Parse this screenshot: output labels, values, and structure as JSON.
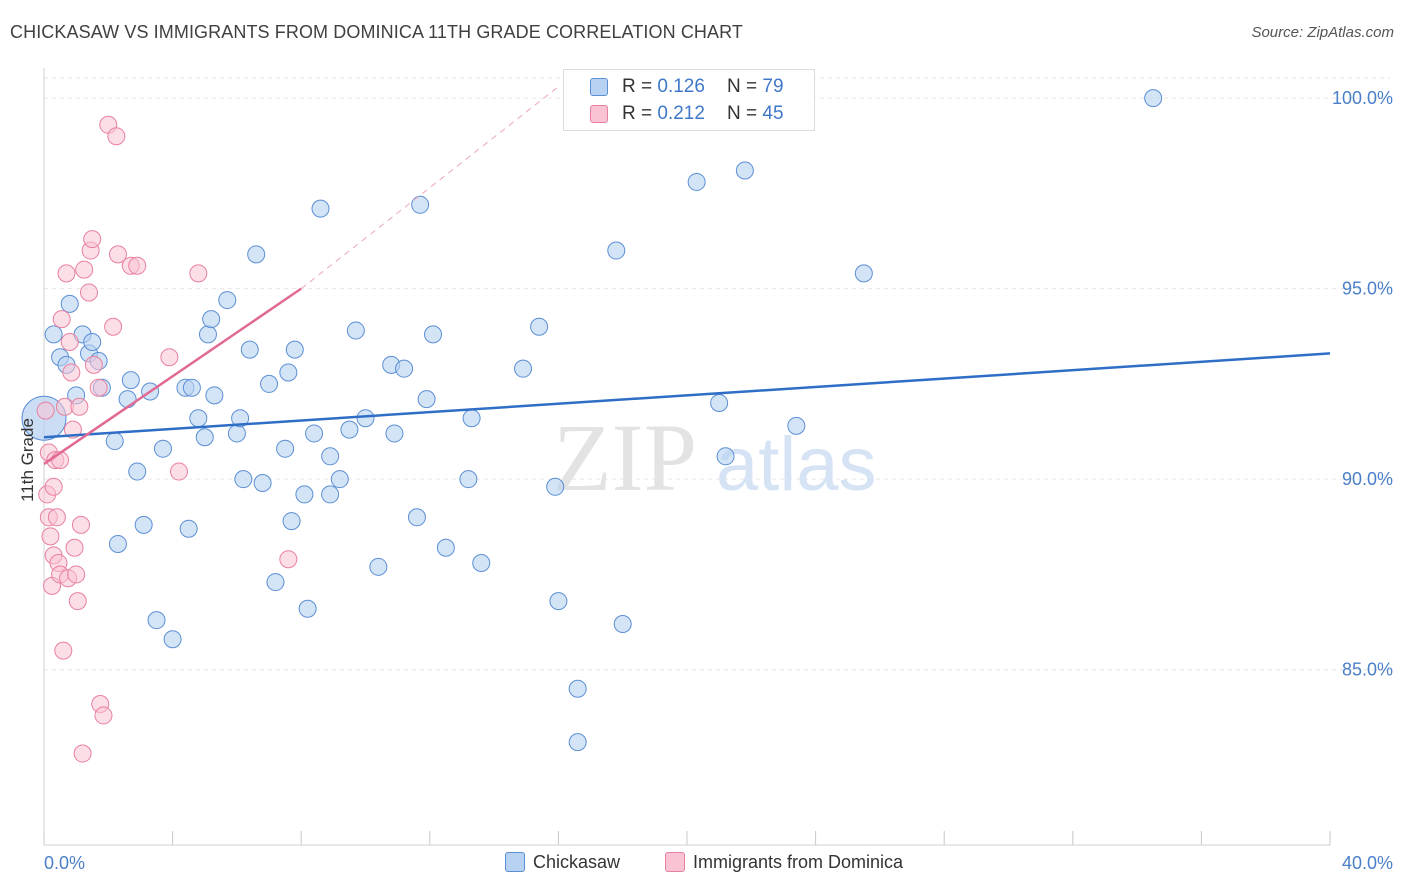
{
  "header": {
    "title": "CHICKASAW VS IMMIGRANTS FROM DOMINICA 11TH GRADE CORRELATION CHART",
    "source": "Source: ZipAtlas.com"
  },
  "watermark": {
    "zip": "ZIP",
    "atlas": "atlas"
  },
  "legend": {
    "rows": [
      {
        "r_label": "R = ",
        "r_value": "0.126",
        "n_label": "N = ",
        "n_value": "79"
      },
      {
        "r_label": "R = ",
        "r_value": "0.212",
        "n_label": "N = ",
        "n_value": "45"
      }
    ]
  },
  "bottom_legend": {
    "series_a": "Chickasaw",
    "series_b": "Immigrants from Dominica"
  },
  "colors": {
    "chickasaw_fill": "#b8d2f2",
    "chickasaw_stroke": "#5b8fd4",
    "chickasaw_line": "#2f6ec6",
    "dominica_fill": "#f9c3d3",
    "dominica_stroke": "#e8819f",
    "dominica_line": "#e06a94",
    "axis_text": "#4a7fc8",
    "grid": "#e6e6e6"
  },
  "chart_data": {
    "type": "scatter",
    "title": "CHICKASAW VS IMMIGRANTS FROM DOMINICA 11TH GRADE CORRELATION CHART",
    "xlabel": "",
    "ylabel": "11th Grade",
    "xlim": [
      0,
      40
    ],
    "ylim": [
      80.4,
      101.0
    ],
    "x_tick_labels": [
      "0.0%",
      "40.0%"
    ],
    "y_ticks": [
      85,
      90,
      95,
      100
    ],
    "y_tick_labels": [
      "85.0%",
      "90.0%",
      "95.0%",
      "100.0%"
    ],
    "grid": true,
    "legend_position": "top-center",
    "series": [
      {
        "name": "Chickasaw",
        "R": 0.126,
        "N": 79,
        "trend": {
          "x": [
            0,
            40
          ],
          "y": [
            91.1,
            93.3
          ]
        },
        "points": [
          [
            0.3,
            93.8
          ],
          [
            0.5,
            93.2
          ],
          [
            0.7,
            93.0
          ],
          [
            0.8,
            94.6
          ],
          [
            1.0,
            92.2
          ],
          [
            1.2,
            93.8
          ],
          [
            1.4,
            93.3
          ],
          [
            1.5,
            93.6
          ],
          [
            1.7,
            93.1
          ],
          [
            1.8,
            92.4
          ],
          [
            2.2,
            91.0
          ],
          [
            2.3,
            88.3
          ],
          [
            2.6,
            92.1
          ],
          [
            2.7,
            92.6
          ],
          [
            2.9,
            90.2
          ],
          [
            3.1,
            88.8
          ],
          [
            3.3,
            92.3
          ],
          [
            3.5,
            86.3
          ],
          [
            3.7,
            90.8
          ],
          [
            4.0,
            85.8
          ],
          [
            4.4,
            92.4
          ],
          [
            4.6,
            92.4
          ],
          [
            4.5,
            88.7
          ],
          [
            4.8,
            91.6
          ],
          [
            5.0,
            91.1
          ],
          [
            5.1,
            93.8
          ],
          [
            5.2,
            94.2
          ],
          [
            5.3,
            92.2
          ],
          [
            5.7,
            94.7
          ],
          [
            6.0,
            91.2
          ],
          [
            6.1,
            91.6
          ],
          [
            6.2,
            90.0
          ],
          [
            6.4,
            93.4
          ],
          [
            6.6,
            95.9
          ],
          [
            6.8,
            89.9
          ],
          [
            7.0,
            92.5
          ],
          [
            7.2,
            87.3
          ],
          [
            7.5,
            90.8
          ],
          [
            7.6,
            92.8
          ],
          [
            7.7,
            88.9
          ],
          [
            7.8,
            93.4
          ],
          [
            8.1,
            89.6
          ],
          [
            8.2,
            86.6
          ],
          [
            8.4,
            91.2
          ],
          [
            8.6,
            97.1
          ],
          [
            8.9,
            90.6
          ],
          [
            8.9,
            89.6
          ],
          [
            9.2,
            90.0
          ],
          [
            9.5,
            91.3
          ],
          [
            9.7,
            93.9
          ],
          [
            10.0,
            91.6
          ],
          [
            10.4,
            87.7
          ],
          [
            10.8,
            93.0
          ],
          [
            10.9,
            91.2
          ],
          [
            11.2,
            92.9
          ],
          [
            11.6,
            89.0
          ],
          [
            11.7,
            97.2
          ],
          [
            11.9,
            92.1
          ],
          [
            12.1,
            93.8
          ],
          [
            12.5,
            88.2
          ],
          [
            13.2,
            90.0
          ],
          [
            13.3,
            91.6
          ],
          [
            13.6,
            87.8
          ],
          [
            14.9,
            92.9
          ],
          [
            15.4,
            94.0
          ],
          [
            15.9,
            89.8
          ],
          [
            16.0,
            86.8
          ],
          [
            16.6,
            84.5
          ],
          [
            16.6,
            83.1
          ],
          [
            17.8,
            96.0
          ],
          [
            18.0,
            86.2
          ],
          [
            20.3,
            97.8
          ],
          [
            21.0,
            92.0
          ],
          [
            21.2,
            90.6
          ],
          [
            21.8,
            98.1
          ],
          [
            23.4,
            91.4
          ],
          [
            25.5,
            95.4
          ],
          [
            34.5,
            100.0
          ],
          [
            0.0,
            91.6
          ]
        ]
      },
      {
        "name": "Immigrants from Dominica",
        "R": 0.212,
        "N": 45,
        "trend": {
          "x": [
            0,
            8.0
          ],
          "y": [
            90.4,
            95.0
          ]
        },
        "trend_extension": {
          "x": [
            8.0,
            16.0
          ],
          "y": [
            95.0,
            100.3
          ]
        },
        "points": [
          [
            0.05,
            91.8
          ],
          [
            0.1,
            89.6
          ],
          [
            0.15,
            90.7
          ],
          [
            0.15,
            89.0
          ],
          [
            0.2,
            88.5
          ],
          [
            0.25,
            87.2
          ],
          [
            0.3,
            88.0
          ],
          [
            0.35,
            90.5
          ],
          [
            0.4,
            89.0
          ],
          [
            0.45,
            87.8
          ],
          [
            0.5,
            87.5
          ],
          [
            0.55,
            94.2
          ],
          [
            0.6,
            85.5
          ],
          [
            0.65,
            91.9
          ],
          [
            0.7,
            95.4
          ],
          [
            0.75,
            87.4
          ],
          [
            0.8,
            93.6
          ],
          [
            0.85,
            92.8
          ],
          [
            0.9,
            91.3
          ],
          [
            0.95,
            88.2
          ],
          [
            1.0,
            87.5
          ],
          [
            1.05,
            86.8
          ],
          [
            1.1,
            91.9
          ],
          [
            1.15,
            88.8
          ],
          [
            1.2,
            82.8
          ],
          [
            1.25,
            95.5
          ],
          [
            1.4,
            94.9
          ],
          [
            1.45,
            96.0
          ],
          [
            1.5,
            96.3
          ],
          [
            1.55,
            93.0
          ],
          [
            1.7,
            92.4
          ],
          [
            1.75,
            84.1
          ],
          [
            1.85,
            83.8
          ],
          [
            2.0,
            99.3
          ],
          [
            2.15,
            94.0
          ],
          [
            2.25,
            99.0
          ],
          [
            2.3,
            95.9
          ],
          [
            2.7,
            95.6
          ],
          [
            2.9,
            95.6
          ],
          [
            3.9,
            93.2
          ],
          [
            4.2,
            90.2
          ],
          [
            4.8,
            95.4
          ],
          [
            7.6,
            87.9
          ],
          [
            0.3,
            89.8
          ],
          [
            0.5,
            90.5
          ]
        ]
      }
    ]
  }
}
